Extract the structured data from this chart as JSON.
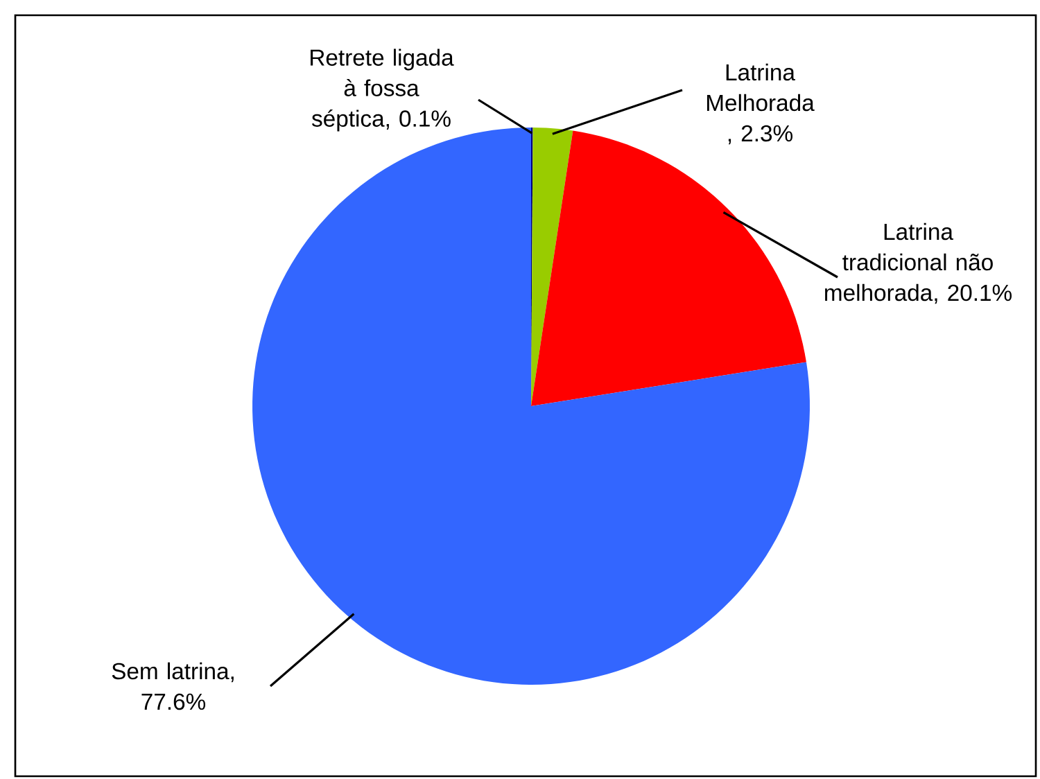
{
  "chart_data": {
    "type": "pie",
    "categories": [
      "Retrete ligada à fossa séptica",
      "Latrina Melhorada",
      "Latrina tradicional não melhorada",
      "Sem latrina"
    ],
    "values": [
      0.1,
      2.3,
      20.1,
      77.6
    ],
    "value_labels": [
      ", 0.1%",
      " , 2.3%",
      ", 20.1%",
      ", 77.6%"
    ],
    "colors": [
      "#000080",
      "#99cc00",
      "#ff0000",
      "#3366ff"
    ]
  }
}
